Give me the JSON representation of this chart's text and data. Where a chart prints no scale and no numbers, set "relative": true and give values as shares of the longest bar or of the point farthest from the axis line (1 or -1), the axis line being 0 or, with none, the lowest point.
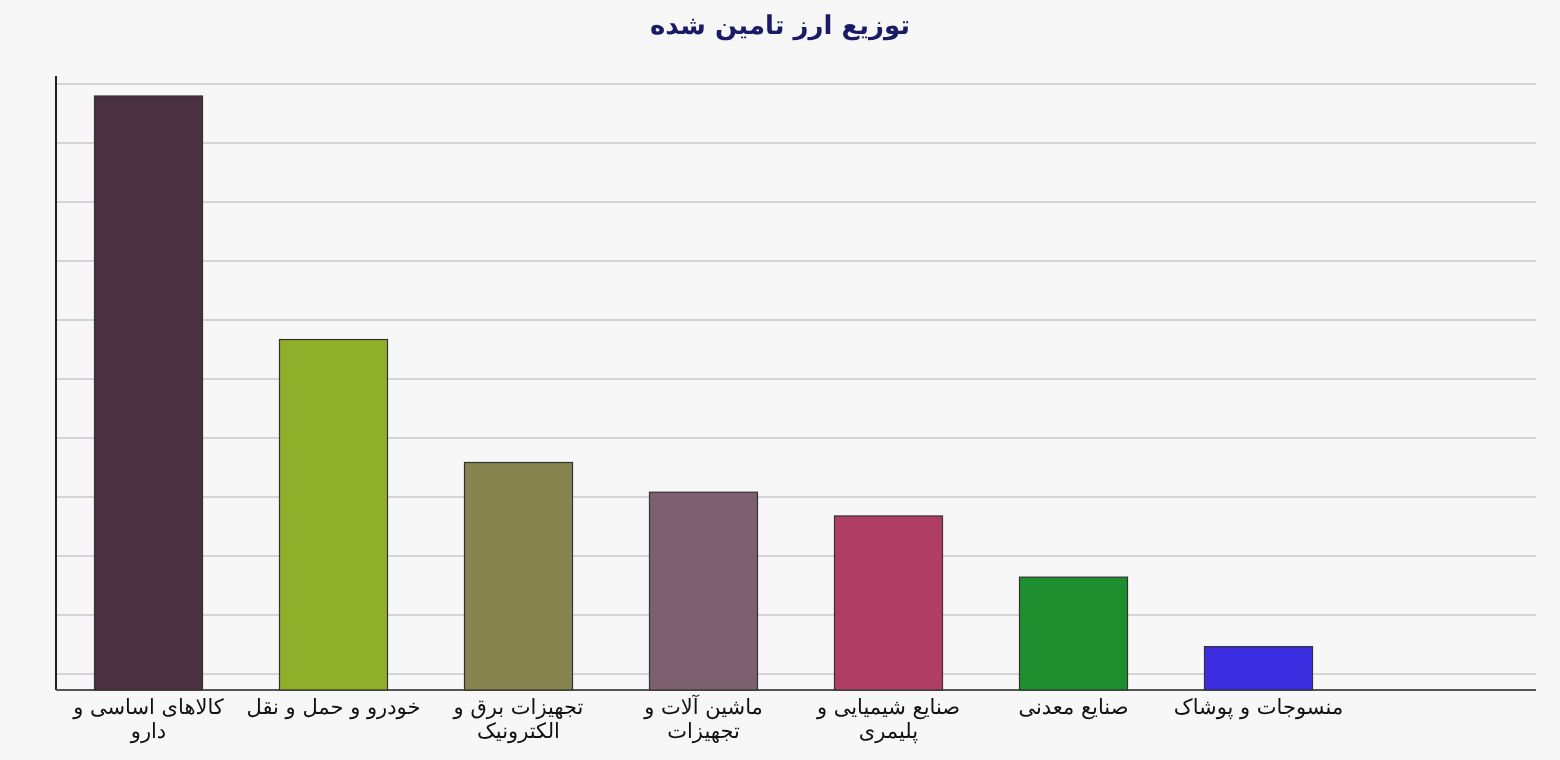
{
  "chart_data": {
    "type": "bar",
    "title": "توزیع ارز تامین شده",
    "relative": true,
    "grid": "y",
    "categories": [
      "کالاهای اساسی و دارو",
      "خودرو و حمل و نقل",
      "تجهیزات برق و الکترونیک",
      "ماشین آلات و تجهیزات",
      "صنایع شیمیایی و پلیمری",
      "صنایع معدنی",
      "منسوجات و پوشاک"
    ],
    "values": [
      1,
      0.59,
      0.383,
      0.333,
      0.293,
      0.19,
      0.073
    ],
    "colors": [
      "#4a3040",
      "#8fae2a",
      "#878450",
      "#7d6070",
      "#b03d64",
      "#1e8e2e",
      "#3a2ee0"
    ]
  }
}
